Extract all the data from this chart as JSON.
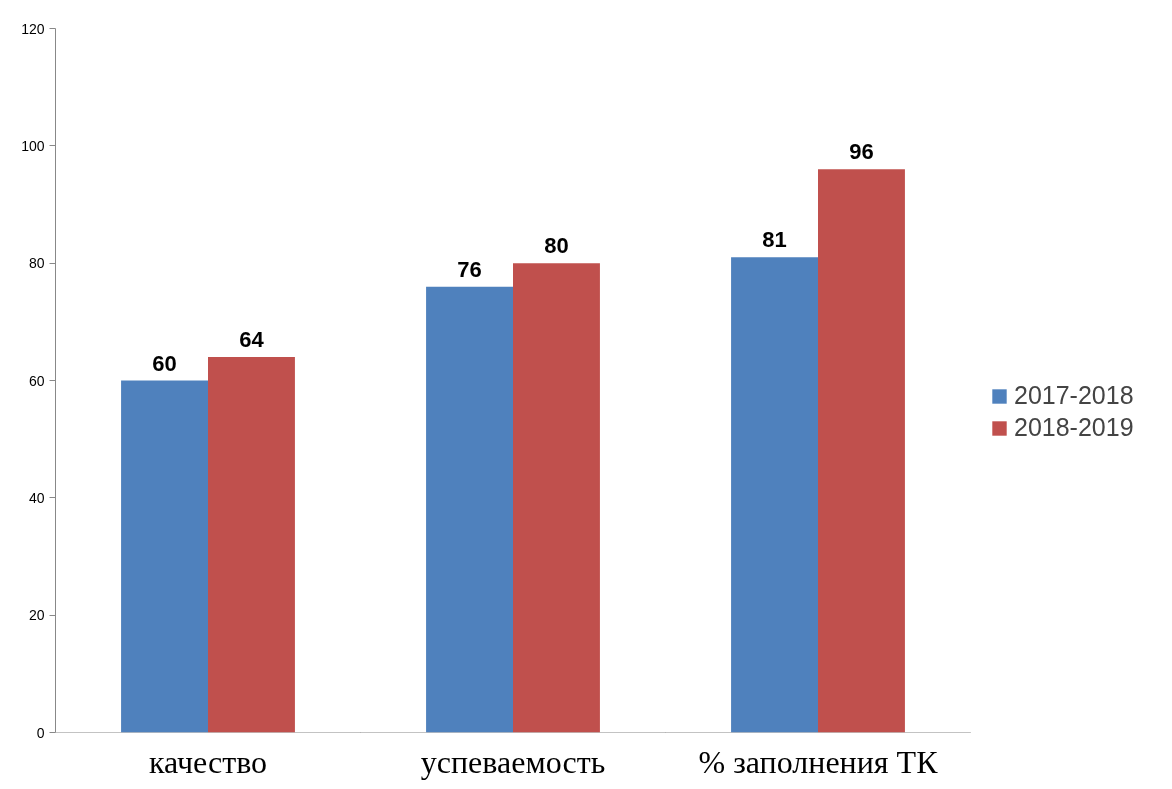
{
  "chart_data": {
    "type": "bar",
    "categories": [
      "качество",
      "успеваемость",
      "% заполнения ТК"
    ],
    "series": [
      {
        "name": "2017-2018",
        "color": "#4f81bd",
        "values": [
          60,
          76,
          81
        ]
      },
      {
        "name": "2018-2019",
        "color": "#c0504d",
        "values": [
          64,
          80,
          96
        ]
      }
    ],
    "ylim": [
      0,
      120
    ],
    "yticks": [
      0,
      20,
      40,
      60,
      80,
      100,
      120
    ],
    "grid": false,
    "legend": "right",
    "data_labels": true
  }
}
